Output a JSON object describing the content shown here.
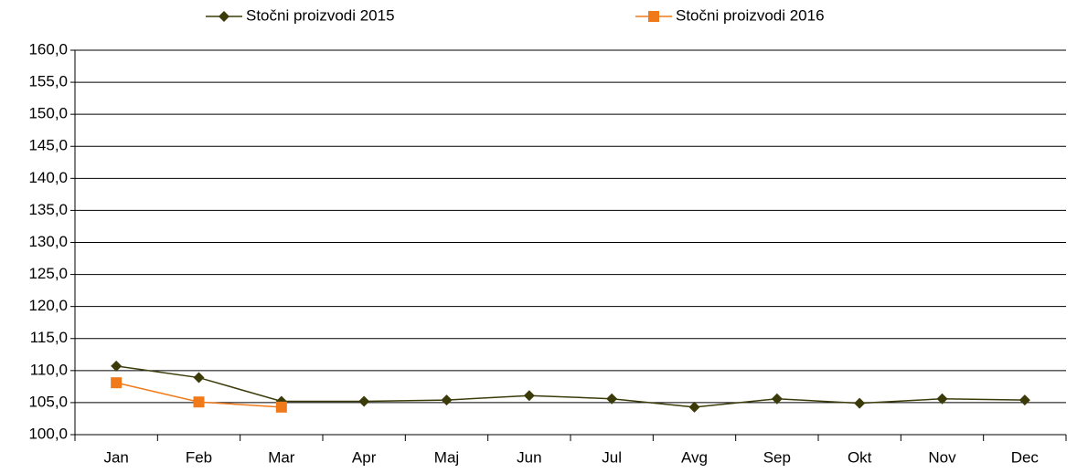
{
  "chart_data": {
    "type": "line",
    "categories": [
      "Jan",
      "Feb",
      "Mar",
      "Apr",
      "Maj",
      "Jun",
      "Jul",
      "Avg",
      "Sep",
      "Okt",
      "Nov",
      "Dec"
    ],
    "series": [
      {
        "name": "Stočni proizvodi  2015",
        "color": "#3b3b0a",
        "marker": "diamond",
        "values": [
          110.7,
          108.9,
          105.2,
          105.2,
          105.4,
          106.1,
          105.6,
          104.3,
          105.6,
          104.9,
          105.6,
          105.4
        ]
      },
      {
        "name": "Stočni proizvodi  2016",
        "color": "#f07a1a",
        "marker": "square",
        "values": [
          108.1,
          105.1,
          104.3,
          null,
          null,
          null,
          null,
          null,
          null,
          null,
          null,
          null
        ]
      }
    ],
    "ylim": [
      100,
      160
    ],
    "yticks": [
      {
        "value": 100,
        "label": "100,0"
      },
      {
        "value": 105,
        "label": "105,0"
      },
      {
        "value": 110,
        "label": "110,0"
      },
      {
        "value": 115,
        "label": "115,0"
      },
      {
        "value": 120,
        "label": "120,0"
      },
      {
        "value": 125,
        "label": "125,0"
      },
      {
        "value": 130,
        "label": "130,0"
      },
      {
        "value": 135,
        "label": "135,0"
      },
      {
        "value": 140,
        "label": "140,0"
      },
      {
        "value": 145,
        "label": "145,0"
      },
      {
        "value": 150,
        "label": "150,0"
      },
      {
        "value": 155,
        "label": "155,0"
      },
      {
        "value": 160,
        "label": "160,0"
      }
    ],
    "grid": true,
    "legend": "top"
  }
}
